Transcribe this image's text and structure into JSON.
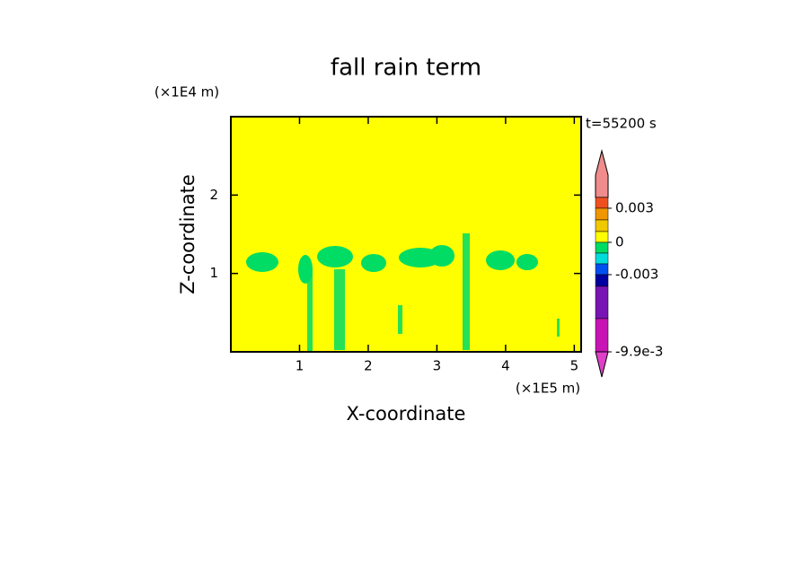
{
  "chart_data": {
    "type": "contour",
    "title": "fall rain term",
    "x_label": "X-coordinate",
    "x_unit": "(×1E5 m)",
    "y_label": "Z-coordinate",
    "y_unit": "(×1E4 m)",
    "time_label": "t=55200 s",
    "xlim": [
      0,
      5.1
    ],
    "xticks": [
      1,
      2,
      3,
      4,
      5
    ],
    "ylim": [
      0,
      3
    ],
    "yticks": [
      1,
      2
    ],
    "background_color": "#ffff00",
    "colorbar": {
      "levels": [
        0.004,
        0.003,
        0.002,
        0.001,
        0,
        -0.001,
        -0.002,
        -0.003,
        -0.004,
        -0.007,
        -0.0099
      ],
      "colors": [
        "#f08c8c",
        "#f05020",
        "#f09600",
        "#f0c800",
        "#ffff00",
        "#00dc64",
        "#00dcdc",
        "#0050f0",
        "#0000a0",
        "#7814b4",
        "#c814b4",
        "#e040c8"
      ],
      "ticks": [
        0.003,
        0,
        -0.003,
        {
          "value": -0.0099,
          "label": "-9.9e-3"
        }
      ]
    }
  }
}
